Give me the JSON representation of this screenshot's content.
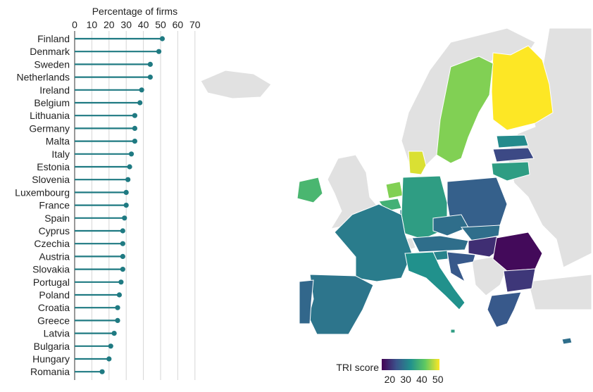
{
  "chart_data": [
    {
      "type": "bar",
      "xlabel": "Percentage of firms",
      "xticks": [
        0,
        10,
        20,
        30,
        40,
        50,
        60,
        70
      ],
      "xlim": [
        0,
        70
      ],
      "grid": true,
      "colors": {
        "stem": "#1f7a82",
        "grid": "#d6d6d6"
      },
      "categories": [
        "Finland",
        "Denmark",
        "Sweden",
        "Netherlands",
        "Ireland",
        "Belgium",
        "Lithuania",
        "Germany",
        "Malta",
        "Italy",
        "Estonia",
        "Slovenia",
        "Luxembourg",
        "France",
        "Spain",
        "Cyprus",
        "Czechia",
        "Austria",
        "Slovakia",
        "Portugal",
        "Poland",
        "Croatia",
        "Greece",
        "Latvia",
        "Bulgaria",
        "Hungary",
        "Romania"
      ],
      "values": [
        51,
        49,
        44,
        44,
        39,
        38,
        35,
        35,
        35,
        33,
        32,
        31,
        30,
        30,
        29,
        28,
        28,
        28,
        28,
        27,
        26,
        25,
        25,
        23,
        21,
        20,
        16
      ]
    },
    {
      "type": "heatmap",
      "subtype": "choropleth-map",
      "legend_title": "TRI score",
      "legend_ticks": [
        20,
        30,
        40,
        50
      ],
      "range": [
        15,
        51
      ],
      "colorscale": [
        "#440154",
        "#3b528b",
        "#21918c",
        "#5ec962",
        "#fde725"
      ],
      "no_data_color": "#e1e1e1",
      "regions": {
        "Finland": 51,
        "Denmark": 49,
        "Sweden": 44,
        "Netherlands": 44,
        "Ireland": 39,
        "Belgium": 38,
        "Lithuania": 35,
        "Germany": 35,
        "Malta": 35,
        "Italy": 33,
        "Estonia": 32,
        "Slovenia": 31,
        "Luxembourg": 30,
        "France": 30,
        "Spain": 29,
        "Cyprus": 28,
        "Czechia": 28,
        "Austria": 28,
        "Slovakia": 28,
        "Portugal": 27,
        "Poland": 26,
        "Croatia": 25,
        "Greece": 25,
        "Latvia": 23,
        "Bulgaria": 21,
        "Hungary": 20,
        "Romania": 16
      }
    }
  ]
}
